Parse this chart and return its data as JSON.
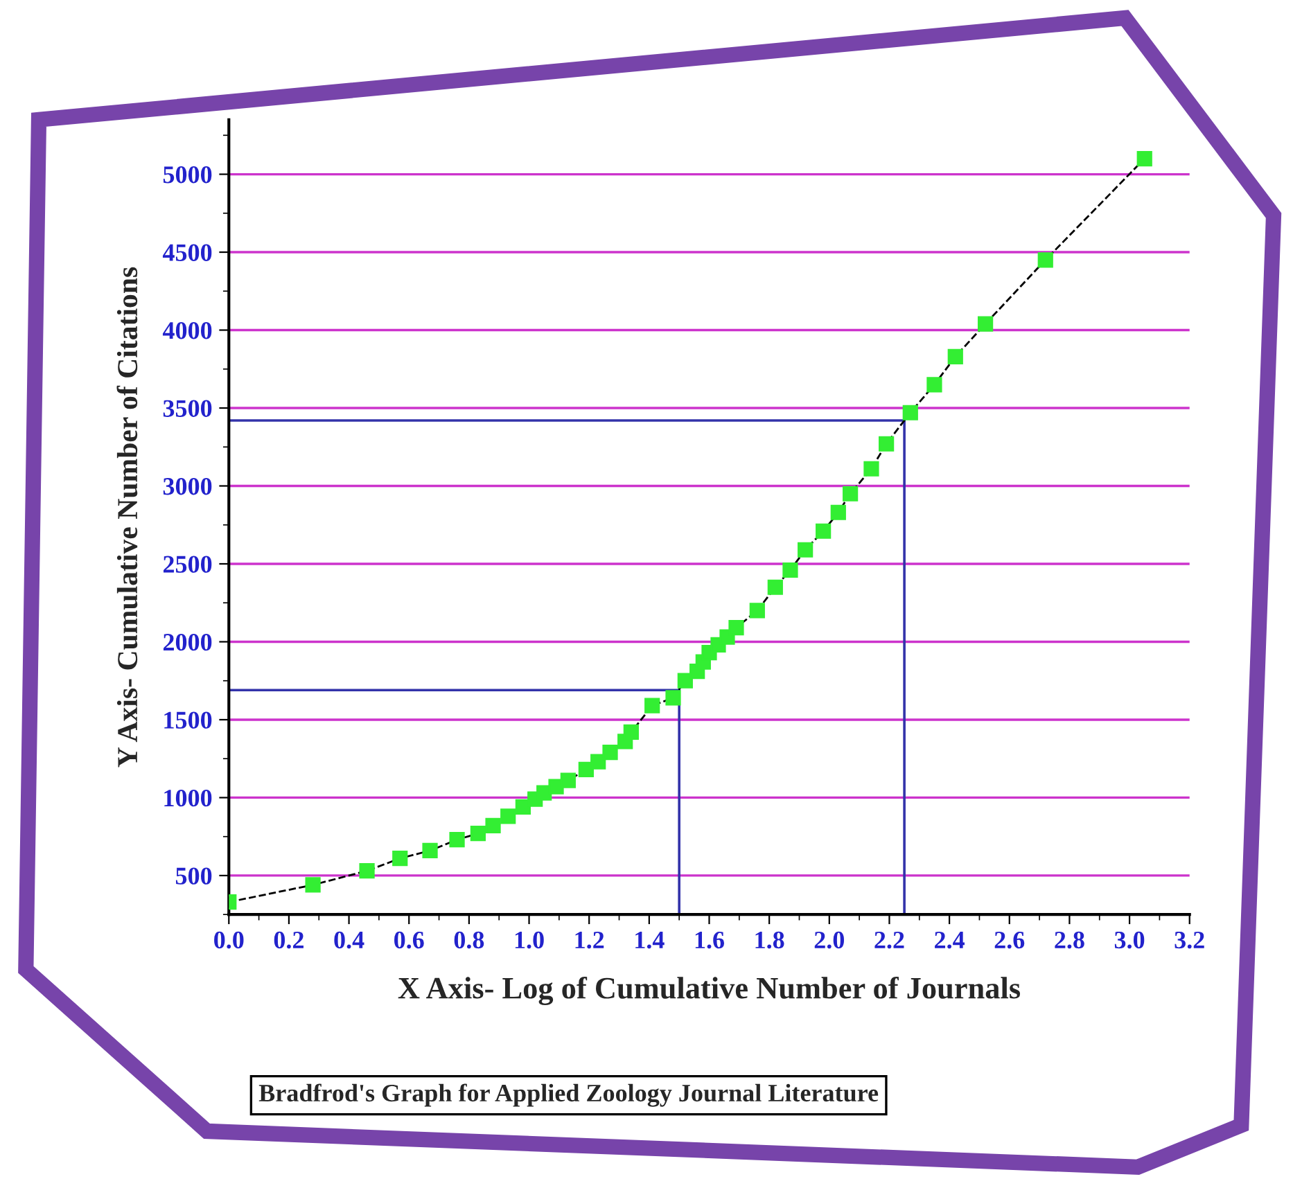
{
  "chart_data": {
    "type": "line",
    "xlabel": "X Axis- Log of Cumulative Number of Journals",
    "ylabel": "Y Axis- Cumulative Number of Citations",
    "annotations": [
      "Bradfrod's Graph for Applied Zoology Journal Literature"
    ],
    "x": [
      0.0,
      0.28,
      0.46,
      0.57,
      0.67,
      0.76,
      0.83,
      0.88,
      0.93,
      0.98,
      1.02,
      1.05,
      1.09,
      1.13,
      1.19,
      1.23,
      1.27,
      1.32,
      1.34,
      1.41,
      1.48,
      1.52,
      1.56,
      1.58,
      1.6,
      1.63,
      1.66,
      1.69,
      1.76,
      1.82,
      1.87,
      1.92,
      1.98,
      2.03,
      2.07,
      2.14,
      2.19,
      2.27,
      2.35,
      2.42,
      2.52,
      2.72,
      3.05
    ],
    "series": [
      {
        "color": "#33ee33",
        "values": [
          330,
          440,
          530,
          610,
          660,
          730,
          770,
          820,
          880,
          940,
          990,
          1030,
          1070,
          1110,
          1180,
          1230,
          1290,
          1360,
          1420,
          1590,
          1640,
          1750,
          1810,
          1870,
          1930,
          1980,
          2030,
          2090,
          2200,
          2350,
          2460,
          2590,
          2710,
          2830,
          2950,
          3110,
          3270,
          3470,
          3650,
          3830,
          4040,
          4450,
          5100
        ]
      }
    ],
    "xlim": [
      0,
      3.2
    ],
    "xticks": [
      {
        "value": 0,
        "label": "0.0"
      },
      {
        "value": 0.2,
        "label": "0.2"
      },
      {
        "value": 0.4,
        "label": "0.4"
      },
      {
        "value": 0.6,
        "label": "0.6"
      },
      {
        "value": 0.8,
        "label": "0.8"
      },
      {
        "value": 1.0,
        "label": "1.0"
      },
      {
        "value": 1.2,
        "label": "1.2"
      },
      {
        "value": 1.4,
        "label": "1.4"
      },
      {
        "value": 1.6,
        "label": "1.6"
      },
      {
        "value": 1.8,
        "label": "1.8"
      },
      {
        "value": 2.0,
        "label": "2.0"
      },
      {
        "value": 2.2,
        "label": "2.2"
      },
      {
        "value": 2.4,
        "label": "2.4"
      },
      {
        "value": 2.6,
        "label": "2.6"
      },
      {
        "value": 2.8,
        "label": "2.8"
      },
      {
        "value": 3.0,
        "label": "3.0"
      },
      {
        "value": 3.2,
        "label": "3.2"
      }
    ],
    "ylim": [
      250,
      5350
    ],
    "yticks": [
      500,
      1000,
      1500,
      2000,
      2500,
      3000,
      3500,
      4000,
      4500,
      5000
    ],
    "grid": "y",
    "marker": "square",
    "line_style": "dashed",
    "ref_lines": [
      {
        "axis": "x",
        "value": 1.5,
        "color": "#3333aa"
      },
      {
        "axis": "y",
        "value": 1690,
        "color": "#3333aa"
      },
      {
        "axis": "x",
        "value": 2.25,
        "color": "#3333aa"
      },
      {
        "axis": "y",
        "value": 3420,
        "color": "#3333aa"
      }
    ]
  }
}
